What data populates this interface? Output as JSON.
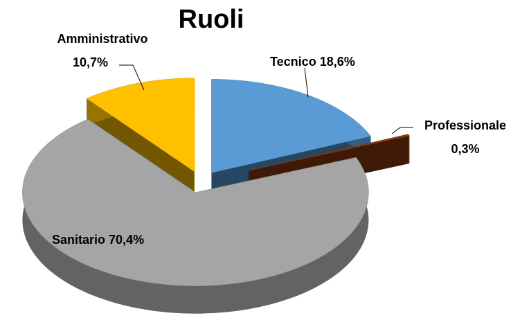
{
  "chart_data": {
    "type": "pie3d",
    "title": "Ruoli",
    "categories": [
      "Tecnico",
      "Professionale",
      "Sanitario",
      "Amministrativo"
    ],
    "values": [
      18.6,
      0.3,
      70.4,
      10.7
    ],
    "value_labels": [
      "18,6%",
      "0,3%",
      "70,4%",
      "10,7%"
    ],
    "colors": [
      "#5b9bd5",
      "#8b3a10",
      "#a5a5a5",
      "#ffc000"
    ]
  }
}
